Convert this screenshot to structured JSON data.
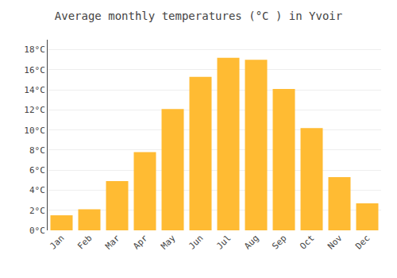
{
  "chart_data": {
    "type": "bar",
    "title": "Average monthly temperatures (°C ) in Yvoir",
    "categories": [
      "Jan",
      "Feb",
      "Mar",
      "Apr",
      "May",
      "Jun",
      "Jul",
      "Aug",
      "Sep",
      "Oct",
      "Nov",
      "Dec"
    ],
    "values": [
      1.5,
      2.1,
      4.9,
      7.8,
      12.1,
      15.3,
      17.2,
      17.0,
      14.1,
      10.2,
      5.3,
      2.7
    ],
    "color": "#FFBB33",
    "ylim": [
      0,
      19
    ],
    "yticks": [
      {
        "value": 0,
        "label": "0°C"
      },
      {
        "value": 2,
        "label": "2°C"
      },
      {
        "value": 4,
        "label": "4°C"
      },
      {
        "value": 6,
        "label": "6°C"
      },
      {
        "value": 8,
        "label": "8°C"
      },
      {
        "value": 10,
        "label": "10°C"
      },
      {
        "value": 12,
        "label": "12°C"
      },
      {
        "value": 14,
        "label": "14°C"
      },
      {
        "value": 16,
        "label": "16°C"
      },
      {
        "value": 18,
        "label": "18°C"
      }
    ],
    "grid": true
  }
}
